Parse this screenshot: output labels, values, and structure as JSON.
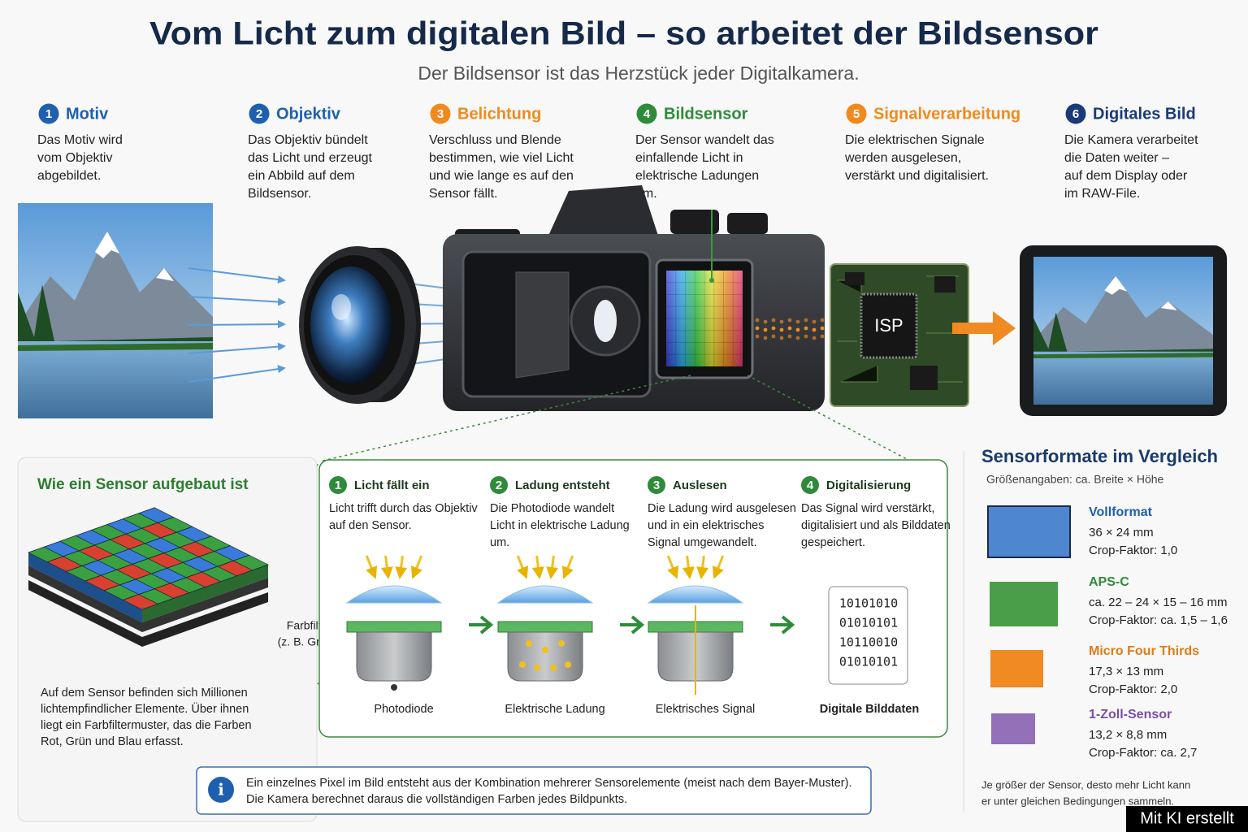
{
  "header": {
    "title": "Vom Licht zum digitalen Bild – so arbeitet der Bildsensor",
    "subtitle": "Der Bildsensor ist das Herzstück jeder Digitalkamera."
  },
  "steps": [
    {
      "number": "1",
      "title": "Motiv",
      "color": "#1f5fb0",
      "text": [
        "Das Motiv wird",
        "vom Objektiv",
        "abgebildet."
      ]
    },
    {
      "number": "2",
      "title": "Objektiv",
      "color": "#1f5fb0",
      "text": [
        "Das Objektiv bündelt",
        "das Licht und erzeugt",
        "ein Abbild auf dem",
        "Bildsensor."
      ]
    },
    {
      "number": "3",
      "title": "Belichtung",
      "color": "#f08a1e",
      "text": [
        "Verschluss und Blende",
        "bestimmen, wie viel Licht",
        "und wie lange es auf den",
        "Sensor fällt."
      ]
    },
    {
      "number": "4",
      "title": "Bildsensor",
      "color": "#2e8b3a",
      "text": [
        "Der Sensor wandelt das",
        "einfallende Licht in",
        "elektrische Ladungen",
        "um."
      ]
    },
    {
      "number": "5",
      "title": "Signalverarbeitung",
      "color": "#f08a1e",
      "text": [
        "Die elektrischen Signale",
        "werden ausgelesen,",
        "verstärkt und digitalisiert."
      ]
    },
    {
      "number": "6",
      "title": "Digitales Bild",
      "color": "#1a3a7a",
      "text": [
        "Die Kamera verarbeitet",
        "die Daten weiter –",
        "auf dem Display oder",
        "im RAW-File."
      ]
    }
  ],
  "chip_label": "ISP",
  "sensor_section": {
    "title": "Wie ein Sensor aufgebaut ist",
    "filter_label": [
      "Farbfilter",
      "(z. B. Grün)"
    ],
    "description": [
      "Auf dem Sensor befinden sich Millionen",
      "lichtempfindlicher Elemente. Über ihnen",
      "liegt ein Farbfiltermuster, das die Farben",
      "Rot, Grün und Blau erfasst."
    ]
  },
  "process": [
    {
      "number": "1",
      "title": "Licht fällt ein",
      "text": [
        "Licht trifft durch das Objektiv",
        "auf den Sensor."
      ],
      "caption": "Photodiode"
    },
    {
      "number": "2",
      "title": "Ladung entsteht",
      "text": [
        "Die Photodiode wandelt",
        "Licht in elektrische Ladung",
        "um."
      ],
      "caption": "Elektrische Ladung"
    },
    {
      "number": "3",
      "title": "Auslesen",
      "text": [
        "Die Ladung wird ausgelesen",
        "und in ein elektrisches",
        "Signal umgewandelt."
      ],
      "caption": "Elektrisches Signal"
    },
    {
      "number": "4",
      "title": "Digitalisierung",
      "text": [
        "Das Signal wird verstärkt,",
        "digitalisiert und als Bilddaten",
        "gespeichert."
      ],
      "caption": "Digitale Bilddaten"
    }
  ],
  "binary": [
    "10101010",
    "01010101",
    "10110010",
    "01010101"
  ],
  "info": [
    "Ein einzelnes Pixel im Bild entsteht aus der Kombination mehrerer Sensorelemente (meist nach dem Bayer-Muster).",
    "Die Kamera berechnet daraus die vollständigen Farben jedes Bildpunkts."
  ],
  "formats": {
    "title": "Sensorformate im Vergleich",
    "subtitle": "Größenangaben: ca. Breite × Höhe",
    "items": [
      {
        "name": "Vollformat",
        "size": "36 × 24 mm",
        "crop": "Crop-Faktor: 1,0",
        "color": "#4f86d0"
      },
      {
        "name": "APS-C",
        "size": "ca. 22 – 24 × 15 – 16 mm",
        "crop": "Crop-Faktor: ca. 1,5 – 1,6",
        "color": "#4a9e4a"
      },
      {
        "name": "Micro Four Thirds",
        "size": "17,3 × 13 mm",
        "crop": "Crop-Faktor: 2,0",
        "color": "#f08a22"
      },
      {
        "name": "1-Zoll-Sensor",
        "size": "13,2 × 8,8 mm",
        "crop": "Crop-Faktor: ca. 2,7",
        "color": "#9370b8"
      }
    ],
    "note": [
      "Je größer der Sensor, desto mehr Licht kann",
      "er unter gleichen Bedingungen sammeln."
    ]
  },
  "badge": "Mit KI erstellt"
}
